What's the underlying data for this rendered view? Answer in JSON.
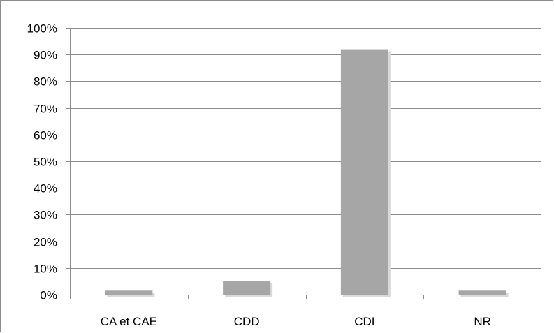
{
  "chart_data": {
    "type": "bar",
    "categories": [
      "CA et CAE",
      "CDD",
      "CDI",
      "NR"
    ],
    "values": [
      1.5,
      5,
      92,
      1.5
    ],
    "ylim": [
      0,
      100
    ],
    "ytick_labels": [
      "0%",
      "10%",
      "20%",
      "30%",
      "40%",
      "50%",
      "60%",
      "70%",
      "80%",
      "90%",
      "100%"
    ],
    "grid": true,
    "legend": "none",
    "bar_color": "#a6a6a6"
  }
}
